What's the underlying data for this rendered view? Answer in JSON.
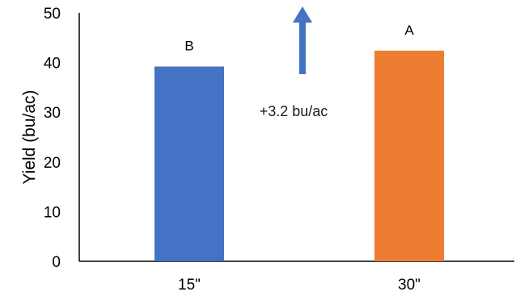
{
  "chart_data": {
    "type": "bar",
    "categories": [
      "15\"",
      "30\""
    ],
    "values": [
      39.2,
      42.4
    ],
    "bar_labels": [
      "B",
      "A"
    ],
    "colors": [
      "#4472C4",
      "#ED7D31"
    ],
    "title": "",
    "xlabel": "",
    "ylabel": "Yield (bu/ac)",
    "ylim": [
      0,
      50
    ],
    "yticks": [
      0,
      10,
      20,
      30,
      40,
      50
    ],
    "grid": false,
    "legend": "none",
    "annotations": [
      {
        "text": "+3.2 bu/ac",
        "arrow": "up",
        "arrow_color": "#4472C4"
      }
    ]
  }
}
